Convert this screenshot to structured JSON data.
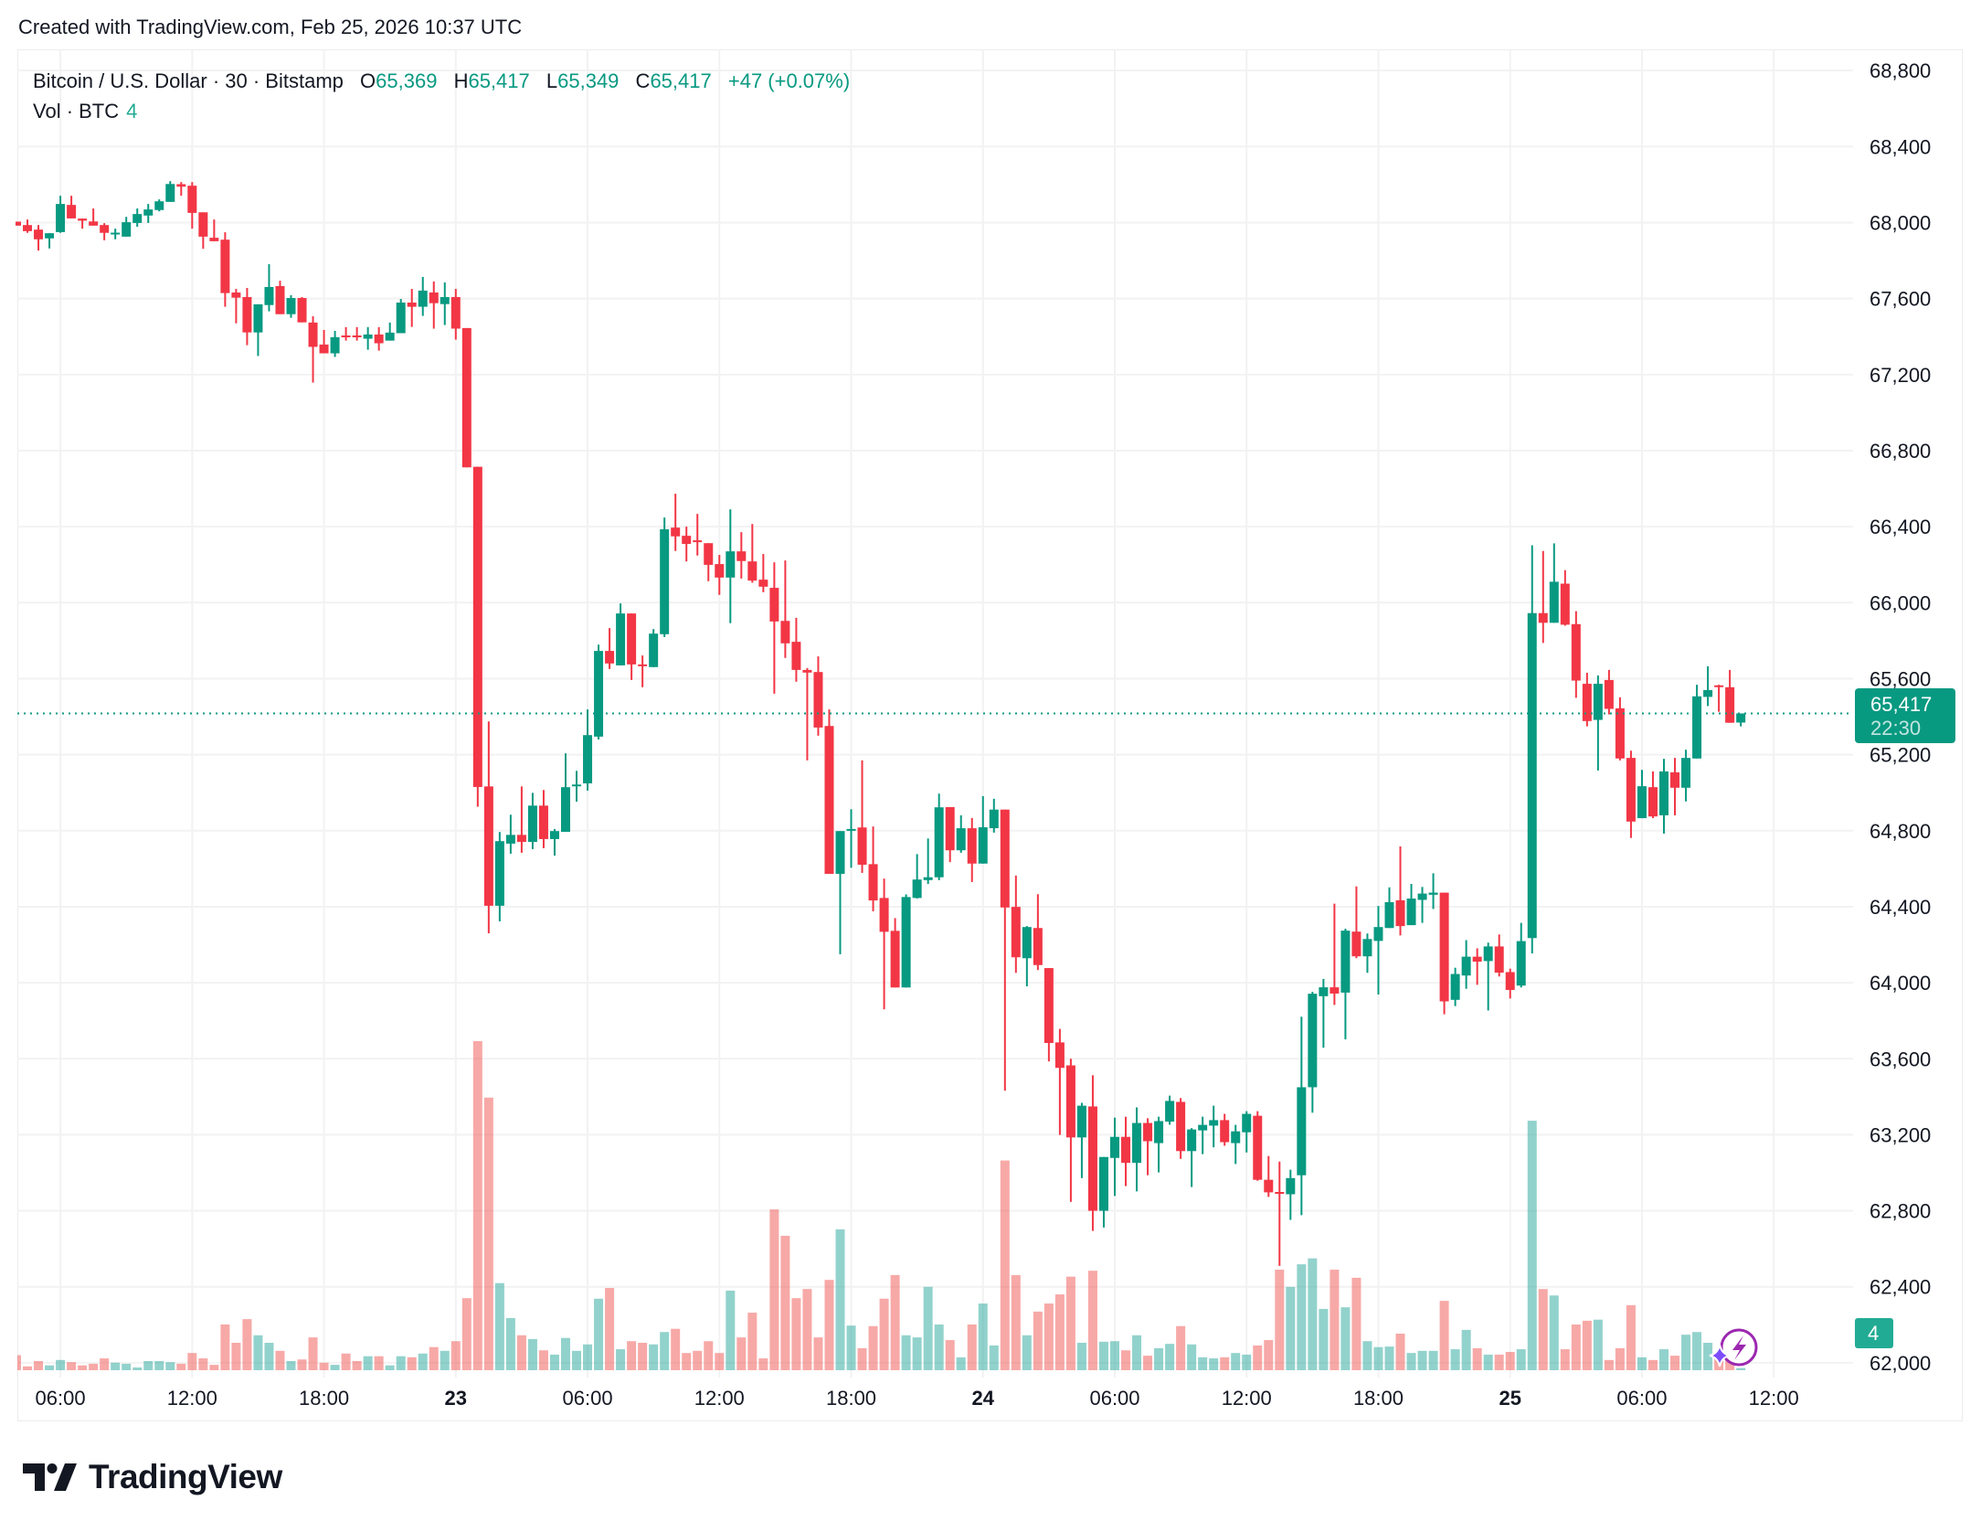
{
  "watermark": "Created with TradingView.com, Feb 25, 2026 10:37 UTC",
  "legend": {
    "symbol": "Bitcoin / U.S. Dollar · 30 · Bitstamp",
    "o_label": "O",
    "o": "65,369",
    "h_label": "H",
    "h": "65,417",
    "l_label": "L",
    "l": "65,349",
    "c_label": "C",
    "c": "65,417",
    "change": "+47 (+0.07%)",
    "vol_label": "Vol · BTC",
    "vol": "4"
  },
  "last_price": {
    "price": "65,417",
    "countdown": "22:30",
    "value": 65417
  },
  "volume_badge": "4",
  "logo_text": "TradingView",
  "colors": {
    "up": "#089981",
    "down": "#f23645",
    "vol_up": "rgba(38,166,154,0.5)",
    "vol_down": "rgba(239,83,80,0.5)",
    "grid": "#f2f2f2",
    "badge": "#22ab94"
  },
  "chart_data": {
    "type": "candlestick",
    "title": "Bitcoin / U.S. Dollar · 30 · Bitstamp",
    "interval": "30",
    "ylim": [
      62000,
      68800
    ],
    "y_ticks": [
      "68,800",
      "68,400",
      "68,000",
      "67,600",
      "67,200",
      "66,800",
      "66,400",
      "66,000",
      "65,600",
      "65,200",
      "64,800",
      "64,400",
      "64,000",
      "63,600",
      "63,200",
      "62,800",
      "62,400",
      "62,000"
    ],
    "y_tick_values": [
      68800,
      68400,
      68000,
      67600,
      67200,
      66800,
      66400,
      66000,
      65600,
      65200,
      64800,
      64400,
      64000,
      63600,
      63200,
      62800,
      62400,
      62000
    ],
    "x_ticks": [
      {
        "label": "06:00",
        "bar": 5
      },
      {
        "label": "12:00",
        "bar": 17
      },
      {
        "label": "18:00",
        "bar": 29
      },
      {
        "label": "23",
        "bar": 41,
        "bold": true
      },
      {
        "label": "06:00",
        "bar": 53
      },
      {
        "label": "12:00",
        "bar": 65
      },
      {
        "label": "18:00",
        "bar": 77
      },
      {
        "label": "24",
        "bar": 89,
        "bold": true
      },
      {
        "label": "06:00",
        "bar": 101
      },
      {
        "label": "12:00",
        "bar": 113
      },
      {
        "label": "18:00",
        "bar": 125
      },
      {
        "label": "25",
        "bar": 137,
        "bold": true
      },
      {
        "label": "06:00",
        "bar": 149
      },
      {
        "label": "12:00",
        "bar": 161
      }
    ],
    "grid": true,
    "columns": [
      "open",
      "high",
      "low",
      "close",
      "volume"
    ],
    "ohlcv": [
      [
        68005,
        68005,
        67984,
        67984,
        28
      ],
      [
        67987,
        68016,
        67946,
        67955,
        7
      ],
      [
        67963,
        67987,
        67853,
        67912,
        17
      ],
      [
        67917,
        67944,
        67864,
        67944,
        9
      ],
      [
        67950,
        68141,
        67946,
        68098,
        19
      ],
      [
        68093,
        68141,
        68022,
        68022,
        15
      ],
      [
        68021,
        68021,
        67968,
        68010,
        9
      ],
      [
        68006,
        68074,
        67984,
        67984,
        12
      ],
      [
        67987,
        67997,
        67907,
        67946,
        22
      ],
      [
        67941,
        67968,
        67912,
        67947,
        14
      ],
      [
        67926,
        68030,
        67926,
        68002,
        12
      ],
      [
        67998,
        68074,
        67978,
        68045,
        5
      ],
      [
        68037,
        68098,
        67998,
        68069,
        17
      ],
      [
        68066,
        68122,
        68059,
        68112,
        17
      ],
      [
        68109,
        68218,
        68109,
        68203,
        15
      ],
      [
        68202,
        68213,
        68141,
        68189,
        12
      ],
      [
        68194,
        68213,
        67968,
        68051,
        32
      ],
      [
        68054,
        68054,
        67862,
        67926,
        22
      ],
      [
        67920,
        68016,
        67902,
        67902,
        10
      ],
      [
        67910,
        67949,
        67557,
        67629,
        85
      ],
      [
        67632,
        67651,
        67470,
        67605,
        51
      ],
      [
        67608,
        67656,
        67355,
        67422,
        95
      ],
      [
        67422,
        67570,
        67298,
        67570,
        65
      ],
      [
        67566,
        67781,
        67533,
        67661,
        51
      ],
      [
        67666,
        67694,
        67518,
        67518,
        36
      ],
      [
        67518,
        67618,
        67499,
        67603,
        17
      ],
      [
        67603,
        67608,
        67475,
        67475,
        20
      ],
      [
        67474,
        67507,
        67158,
        67346,
        61
      ],
      [
        67358,
        67435,
        67312,
        67312,
        14
      ],
      [
        67312,
        67430,
        67293,
        67397,
        10
      ],
      [
        67406,
        67450,
        67379,
        67398,
        31
      ],
      [
        67406,
        67450,
        67379,
        67398,
        17
      ],
      [
        67389,
        67450,
        67331,
        67411,
        26
      ],
      [
        67411,
        67450,
        67326,
        67365,
        26
      ],
      [
        67379,
        67474,
        67379,
        67421,
        9
      ],
      [
        67418,
        67598,
        67418,
        67579,
        26
      ],
      [
        67579,
        67651,
        67451,
        67557,
        24
      ],
      [
        67557,
        67714,
        67509,
        67642,
        31
      ],
      [
        67632,
        67690,
        67442,
        67576,
        43
      ],
      [
        67571,
        67685,
        67461,
        67608,
        36
      ],
      [
        67608,
        67651,
        67384,
        67442,
        54
      ],
      [
        67445,
        67445,
        66712,
        66712,
        134
      ],
      [
        66715,
        66715,
        64926,
        65030,
        612
      ],
      [
        65033,
        65375,
        64260,
        64405,
        507
      ],
      [
        64405,
        64793,
        64323,
        64745,
        162
      ],
      [
        64732,
        64884,
        64679,
        64778,
        97
      ],
      [
        64778,
        65033,
        64684,
        64741,
        65
      ],
      [
        64741,
        64999,
        64703,
        64932,
        58
      ],
      [
        64932,
        65014,
        64708,
        64756,
        37
      ],
      [
        64756,
        64809,
        64669,
        64798,
        29
      ],
      [
        64794,
        65207,
        64794,
        65029,
        60
      ],
      [
        65036,
        65115,
        64953,
        65043,
        36
      ],
      [
        65049,
        65438,
        65011,
        65303,
        48
      ],
      [
        65295,
        65779,
        65280,
        65746,
        133
      ],
      [
        65746,
        65866,
        65651,
        65680,
        153
      ],
      [
        65670,
        65996,
        65670,
        65943,
        39
      ],
      [
        65943,
        65943,
        65593,
        65675,
        54
      ],
      [
        65675,
        65722,
        65555,
        65669,
        51
      ],
      [
        65661,
        65861,
        65661,
        65837,
        48
      ],
      [
        65834,
        66448,
        65819,
        66386,
        71
      ],
      [
        66395,
        66573,
        66272,
        66349,
        77
      ],
      [
        66352,
        66400,
        66217,
        66309,
        32
      ],
      [
        66328,
        66467,
        66248,
        66323,
        36
      ],
      [
        66313,
        66313,
        66113,
        66199,
        54
      ],
      [
        66203,
        66251,
        66041,
        66132,
        32
      ],
      [
        66132,
        66491,
        65892,
        66270,
        148
      ],
      [
        66270,
        66371,
        66127,
        66219,
        61
      ],
      [
        66217,
        66414,
        66105,
        66116,
        107
      ],
      [
        66121,
        66256,
        66055,
        66084,
        22
      ],
      [
        66078,
        66212,
        65521,
        65901,
        299
      ],
      [
        65904,
        66222,
        65709,
        65786,
        250
      ],
      [
        65794,
        65920,
        65584,
        65646,
        134
      ],
      [
        65646,
        65656,
        65170,
        65632,
        151
      ],
      [
        65635,
        65717,
        65300,
        65343,
        61
      ],
      [
        65351,
        65438,
        64573,
        64573,
        168
      ],
      [
        64573,
        64798,
        64150,
        64798,
        262
      ],
      [
        64806,
        64913,
        64605,
        64809,
        83
      ],
      [
        64817,
        65170,
        64578,
        64621,
        41
      ],
      [
        64624,
        64822,
        64376,
        64433,
        82
      ],
      [
        64446,
        64548,
        63860,
        64268,
        133
      ],
      [
        64273,
        64340,
        63975,
        63975,
        177
      ],
      [
        63975,
        64465,
        63975,
        64451,
        65
      ],
      [
        64446,
        64677,
        64443,
        64543,
        61
      ],
      [
        64540,
        64759,
        64520,
        64555,
        155
      ],
      [
        64555,
        64995,
        64540,
        64923,
        85
      ],
      [
        64924,
        64924,
        64635,
        64697,
        56
      ],
      [
        64697,
        64881,
        64684,
        64813,
        24
      ],
      [
        64813,
        64867,
        64530,
        64627,
        85
      ],
      [
        64627,
        64982,
        64627,
        64818,
        124
      ],
      [
        64813,
        64968,
        64790,
        64911,
        46
      ],
      [
        64911,
        64911,
        63432,
        64396,
        390
      ],
      [
        64399,
        64564,
        64052,
        64134,
        177
      ],
      [
        64129,
        64298,
        63981,
        64293,
        65
      ],
      [
        64288,
        64466,
        64067,
        64093,
        109
      ],
      [
        64077,
        64077,
        63586,
        63683,
        124
      ],
      [
        63686,
        63757,
        63199,
        63552,
        141
      ],
      [
        63565,
        63600,
        62847,
        63186,
        174
      ],
      [
        63186,
        63368,
        62972,
        63353,
        51
      ],
      [
        63349,
        63513,
        62694,
        62800,
        185
      ],
      [
        62800,
        63083,
        62712,
        63083,
        53
      ],
      [
        63078,
        63290,
        62878,
        63189,
        54
      ],
      [
        63189,
        63295,
        62930,
        63052,
        37
      ],
      [
        63052,
        63344,
        62902,
        63262,
        65
      ],
      [
        63262,
        63287,
        62987,
        63166,
        27
      ],
      [
        63156,
        63295,
        63002,
        63272,
        41
      ],
      [
        63269,
        63406,
        63253,
        63378,
        49
      ],
      [
        63373,
        63393,
        63073,
        63114,
        82
      ],
      [
        63114,
        63235,
        62925,
        63228,
        48
      ],
      [
        63223,
        63295,
        63098,
        63252,
        24
      ],
      [
        63248,
        63353,
        63134,
        63277,
        22
      ],
      [
        63277,
        63310,
        63142,
        63161,
        24
      ],
      [
        63156,
        63252,
        63046,
        63218,
        32
      ],
      [
        63213,
        63324,
        63107,
        63310,
        29
      ],
      [
        63300,
        63324,
        62958,
        62963,
        46
      ],
      [
        62963,
        63088,
        62873,
        62897,
        56
      ],
      [
        62899,
        63059,
        62510,
        62889,
        187
      ],
      [
        62887,
        63016,
        62752,
        62972,
        155
      ],
      [
        62987,
        63821,
        62777,
        63450,
        197
      ],
      [
        63450,
        63952,
        63316,
        63942,
        208
      ],
      [
        63929,
        64020,
        63658,
        63976,
        114
      ],
      [
        63976,
        64416,
        63883,
        63943,
        187
      ],
      [
        63948,
        64284,
        63702,
        64274,
        117
      ],
      [
        64269,
        64507,
        64129,
        64139,
        172
      ],
      [
        64139,
        64259,
        64052,
        64230,
        54
      ],
      [
        64220,
        64404,
        63938,
        64293,
        43
      ],
      [
        64288,
        64502,
        64288,
        64424,
        44
      ],
      [
        64434,
        64717,
        64249,
        64298,
        68
      ],
      [
        64303,
        64520,
        64303,
        64443,
        32
      ],
      [
        64436,
        64504,
        64315,
        64469,
        36
      ],
      [
        64463,
        64576,
        64388,
        64474,
        36
      ],
      [
        64474,
        64474,
        63834,
        63902,
        129
      ],
      [
        63910,
        64079,
        63877,
        64046,
        39
      ],
      [
        64038,
        64224,
        63968,
        64137,
        75
      ],
      [
        64137,
        64181,
        63989,
        64111,
        41
      ],
      [
        64114,
        64211,
        63854,
        64191,
        29
      ],
      [
        64191,
        64254,
        64033,
        64053,
        29
      ],
      [
        64056,
        64074,
        63917,
        63962,
        34
      ],
      [
        63985,
        64315,
        63975,
        64219,
        39
      ],
      [
        64235,
        66302,
        64154,
        65945,
        464
      ],
      [
        65945,
        66272,
        65788,
        65894,
        151
      ],
      [
        65894,
        66312,
        65894,
        66110,
        139
      ],
      [
        66100,
        66171,
        65879,
        65884,
        39
      ],
      [
        65887,
        65955,
        65499,
        65590,
        85
      ],
      [
        65573,
        65631,
        65349,
        65377,
        92
      ],
      [
        65383,
        65617,
        65117,
        65573,
        94
      ],
      [
        65593,
        65646,
        65412,
        65441,
        19
      ],
      [
        65444,
        65502,
        65170,
        65180,
        41
      ],
      [
        65183,
        65221,
        64762,
        64848,
        121
      ],
      [
        64866,
        65120,
        64866,
        65034,
        24
      ],
      [
        65029,
        65112,
        64866,
        64875,
        19
      ],
      [
        64881,
        65178,
        64785,
        65112,
        39
      ],
      [
        65107,
        65183,
        64881,
        65026,
        27
      ],
      [
        65026,
        65226,
        64954,
        65183,
        66
      ],
      [
        65180,
        65568,
        65180,
        65507,
        71
      ],
      [
        65504,
        65665,
        65456,
        65540,
        51
      ],
      [
        65565,
        65568,
        65426,
        65558,
        21
      ],
      [
        65555,
        65646,
        65368,
        65368,
        18
      ],
      [
        65369,
        65417,
        65349,
        65417,
        4
      ]
    ]
  }
}
